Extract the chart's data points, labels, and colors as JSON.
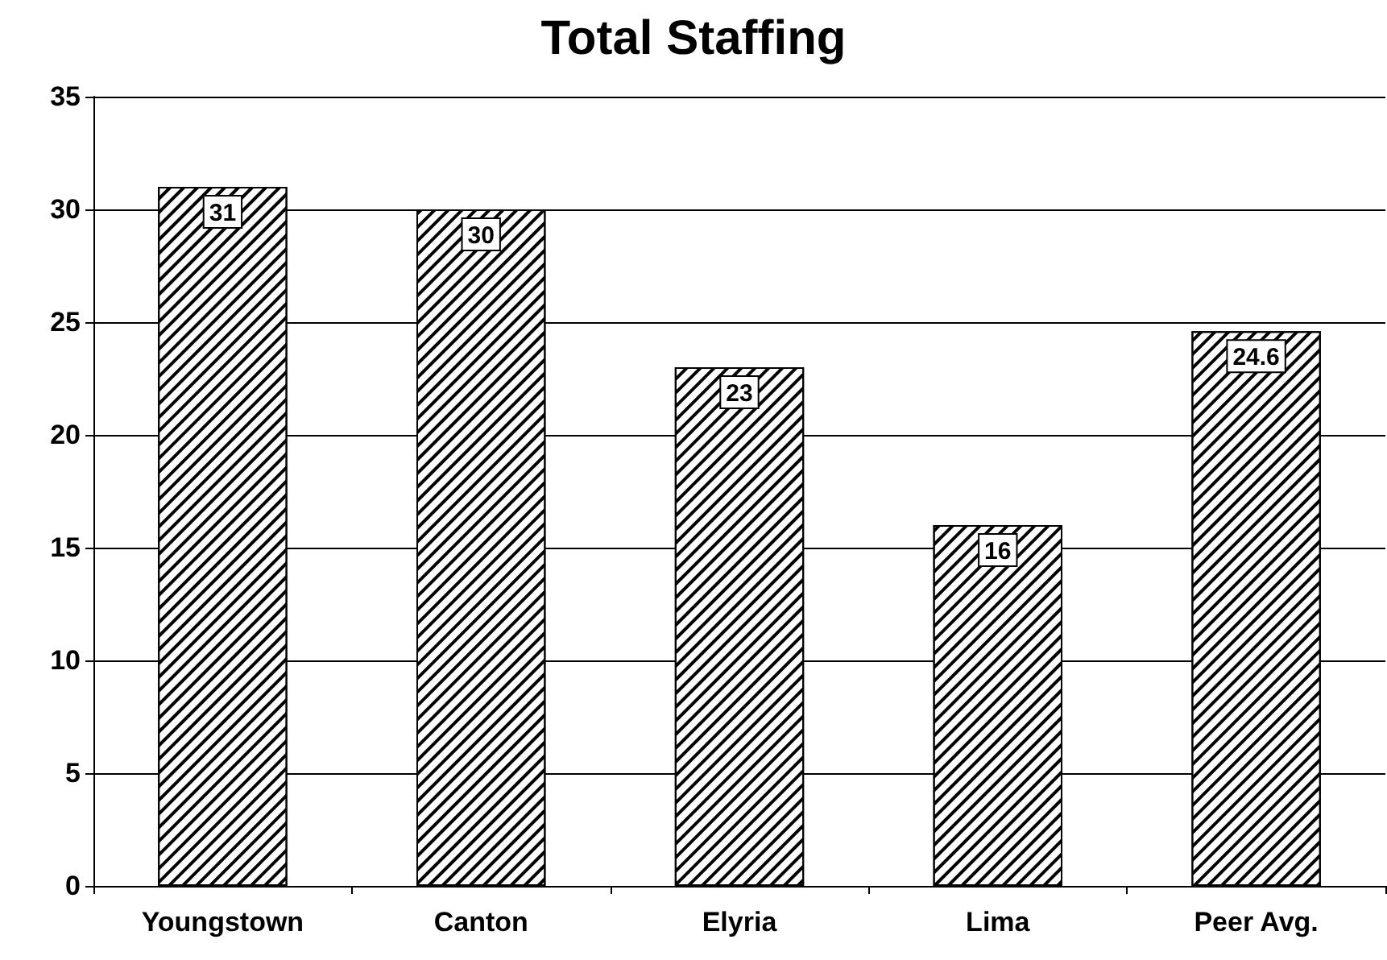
{
  "chart_data": {
    "type": "bar",
    "title": "Total Staffing",
    "categories": [
      "Youngstown",
      "Canton",
      "Elyria",
      "Lima",
      "Peer Avg."
    ],
    "values": [
      31,
      30,
      23,
      16,
      24.6
    ],
    "color": "#000000",
    "ylim": [
      0,
      35
    ],
    "yticks": [
      0,
      5,
      10,
      15,
      20,
      25,
      30,
      35
    ],
    "grid": "y",
    "data_labels": true
  }
}
